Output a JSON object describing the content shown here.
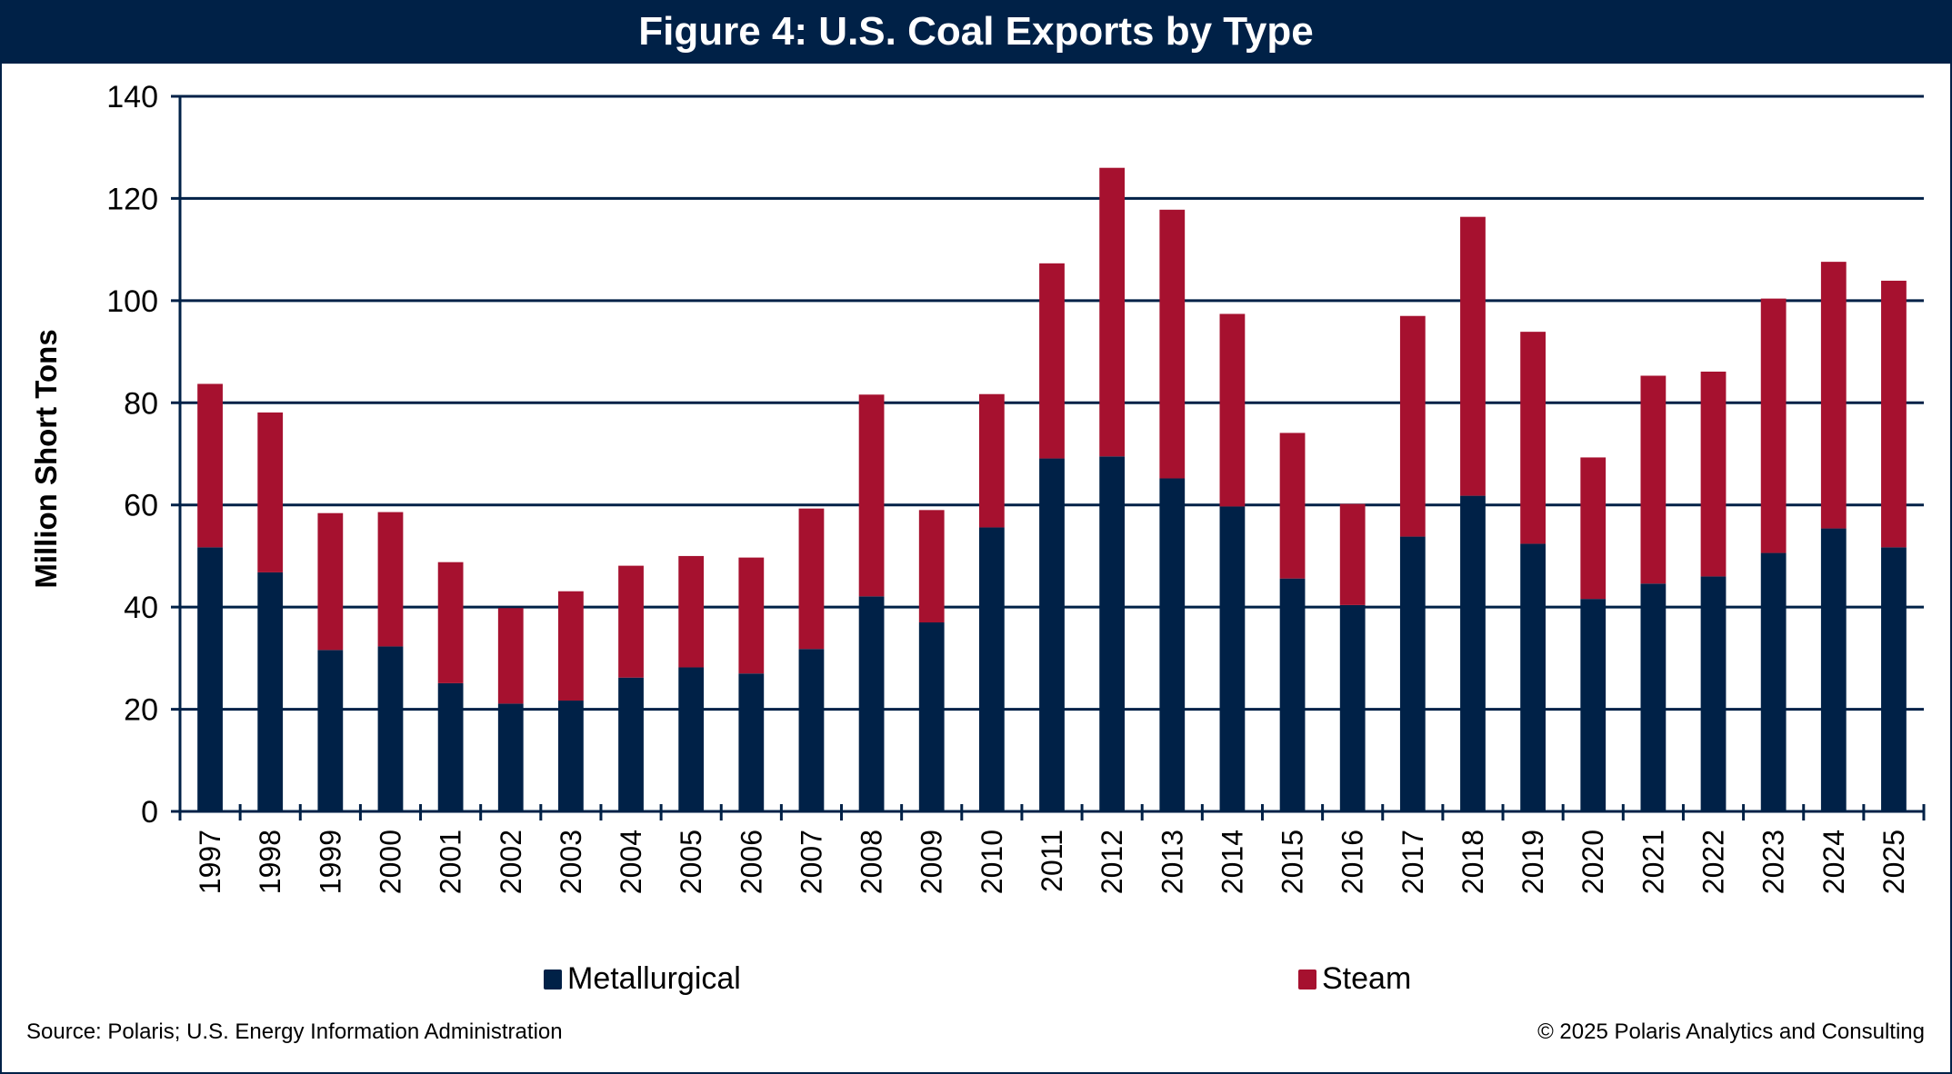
{
  "title": "Figure 4: U.S. Coal Exports by Type",
  "source": "Source: Polaris; U.S. Energy Information Administration",
  "copyright": "© 2025 Polaris Analytics and Consulting",
  "colors": {
    "metallurgical": "#002147",
    "steam": "#A6112F",
    "axis": "#002147",
    "title_bg": "#002147"
  },
  "chart_data": {
    "type": "bar",
    "stacked": true,
    "title": "Figure 4: U.S. Coal Exports by Type",
    "xlabel": "",
    "ylabel": "Million Short Tons",
    "ylim": [
      0,
      140
    ],
    "yticks": [
      0,
      20,
      40,
      60,
      80,
      100,
      120,
      140
    ],
    "grid": true,
    "legend_position": "bottom",
    "categories": [
      "1997",
      "1998",
      "1999",
      "2000",
      "2001",
      "2002",
      "2003",
      "2004",
      "2005",
      "2006",
      "2007",
      "2008",
      "2009",
      "2010",
      "2011",
      "2012",
      "2013",
      "2014",
      "2015",
      "2016",
      "2017",
      "2018",
      "2019",
      "2020",
      "2021",
      "2022",
      "2023",
      "2024",
      "2025"
    ],
    "series": [
      {
        "name": "Metallurgical",
        "values": [
          51.7,
          46.8,
          31.6,
          32.3,
          25.1,
          21.1,
          21.7,
          26.2,
          28.2,
          27.0,
          31.8,
          42.1,
          37.0,
          55.6,
          69.1,
          69.5,
          65.2,
          59.7,
          45.6,
          40.4,
          53.8,
          61.8,
          52.4,
          41.6,
          44.6,
          46.0,
          50.6,
          55.4,
          51.7
        ]
      },
      {
        "name": "Steam",
        "values": [
          32.0,
          31.3,
          26.8,
          26.3,
          23.7,
          18.7,
          21.4,
          21.9,
          21.8,
          22.7,
          27.5,
          39.5,
          22.0,
          26.1,
          38.2,
          56.5,
          52.6,
          37.7,
          28.5,
          19.8,
          43.2,
          54.6,
          41.5,
          27.7,
          40.7,
          40.1,
          49.8,
          52.2,
          52.2
        ]
      }
    ]
  }
}
